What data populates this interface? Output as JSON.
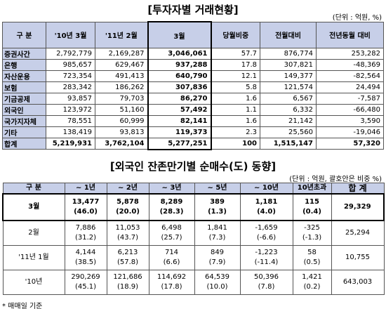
{
  "trading": {
    "title": "[투자자별 거래현황]",
    "unit": "(단위 : 억원, %)",
    "header": [
      "구 분",
      "'10년 3월",
      "'11년 2월",
      "3월",
      "당월비중",
      "전월대비",
      "전년동월 대비"
    ],
    "rows": [
      [
        "증권사간",
        "2,792,779",
        "2,169,287",
        "3,046,061",
        "57.7",
        "876,774",
        "253,282"
      ],
      [
        "은행",
        "985,657",
        "629,467",
        "937,288",
        "17.8",
        "307,821",
        "-48,369"
      ],
      [
        "자산운용",
        "723,354",
        "491,413",
        "640,790",
        "12.1",
        "149,377",
        "-82,564"
      ],
      [
        "보험",
        "283,342",
        "186,262",
        "307,836",
        "5.8",
        "121,574",
        "24,494"
      ],
      [
        "기금공제",
        "93,857",
        "79,703",
        "86,270",
        "1.6",
        "6,567",
        "-7,587"
      ],
      [
        "외국인",
        "123,972",
        "51,160",
        "57,492",
        "1.1",
        "6,332",
        "-66,480"
      ],
      [
        "국가지자체",
        "78,551",
        "60,999",
        "82,141",
        "1.6",
        "21,142",
        "3,590"
      ],
      [
        "기타",
        "138,419",
        "93,813",
        "119,373",
        "2.3",
        "25,560",
        "-19,046"
      ],
      [
        "합계",
        "5,219,931",
        "3,762,104",
        "5,277,251",
        "100",
        "1,515,147",
        "57,320"
      ]
    ]
  },
  "foreign": {
    "title": "[외국인 잔존만기별 순매수(도) 동향]",
    "unit": "(단위 : 억원, 괄호안은 비중 %)",
    "header": [
      "구 분",
      "~ 1년",
      "~ 2년",
      "~ 3년",
      "~ 5년",
      "~ 10년",
      "10년초과",
      "합 계"
    ],
    "rows": [
      {
        "label": "3월",
        "values": [
          "13,477",
          "5,878",
          "8,289",
          "389",
          "1,181",
          "115"
        ],
        "shares": [
          "(46.0)",
          "(20.0)",
          "(28.3)",
          "(1.3)",
          "(4.0)",
          "(0.4)"
        ],
        "total": "29,329"
      },
      {
        "label": "2월",
        "values": [
          "7,886",
          "11,053",
          "6,498",
          "1,841",
          "-1,659",
          "-325"
        ],
        "shares": [
          "(31.2)",
          "(43.7)",
          "(25.7)",
          "(7.3)",
          "(-6.6)",
          "(-1.3)"
        ],
        "total": "25,294"
      },
      {
        "label": "'11년 1월",
        "values": [
          "4,144",
          "6,213",
          "714",
          "849",
          "-1,223",
          "58"
        ],
        "shares": [
          "(38.5)",
          "(57.8)",
          "(6.6)",
          "(7.9)",
          "(-11.4)",
          "(0.5)"
        ],
        "total": "10,755"
      },
      {
        "label": "'10년",
        "values": [
          "290,269",
          "121,686",
          "114,692",
          "64,539",
          "50,396",
          "1,421"
        ],
        "shares": [
          "(45.1)",
          "(18.9)",
          "(17.8)",
          "(10.0)",
          "(7.8)",
          "(0.2)"
        ],
        "total": "643,003"
      }
    ],
    "footnote": "* 매매일 기준"
  }
}
